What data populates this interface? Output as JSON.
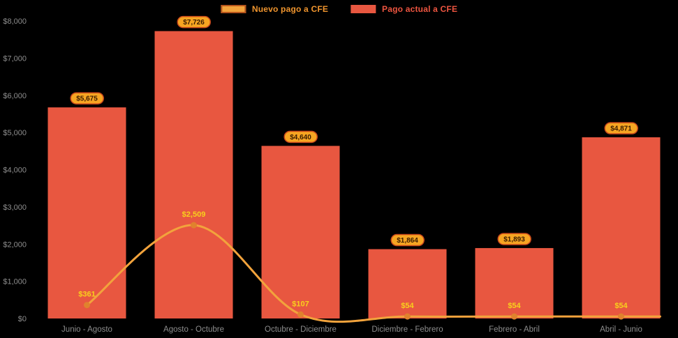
{
  "chart_data": {
    "type": "bar",
    "title": "",
    "categories": [
      "Junio - Agosto",
      "Agosto - Octubre",
      "Octubre - Diciembre",
      "Diciembre - Febrero",
      "Febrero - Abril",
      "Abril - Junio"
    ],
    "series": [
      {
        "name": "Nuevo pago a CFE",
        "type": "line",
        "color": "#f2a33c",
        "marker_color": "#e0822d",
        "label_color": "#f0952e",
        "swatch_border": "#b5541c",
        "values": [
          361,
          2509,
          107,
          54,
          54,
          54
        ],
        "value_labels": [
          "$361",
          "$2,509",
          "$107",
          "$54",
          "$54",
          "$54"
        ],
        "value_label_color": "#f8d01c"
      },
      {
        "name": "Pago actual a CFE",
        "type": "bar",
        "color": "#e85740",
        "label_color": "#ee5540",
        "values": [
          5675,
          7726,
          4640,
          1864,
          1893,
          4871
        ],
        "value_labels": [
          "$5,675",
          "$7,726",
          "$4,640",
          "$1,864",
          "$1,893",
          "$4,871"
        ],
        "value_label_bg": "#f6a522",
        "value_label_border": "#c9471b",
        "value_label_text": "#3a1c00"
      }
    ],
    "ylim": [
      0,
      8000
    ],
    "yticks": [
      0,
      1000,
      2000,
      3000,
      4000,
      5000,
      6000,
      7000,
      8000
    ],
    "ytick_labels": [
      "$0",
      "$1,000",
      "$2,000",
      "$3,000",
      "$4,000",
      "$5,000",
      "$6,000",
      "$7,000",
      "$8,000"
    ],
    "grid": false,
    "legend_position": "top-center",
    "background": "#000000",
    "axis_text_color": "#8d8d8d"
  }
}
